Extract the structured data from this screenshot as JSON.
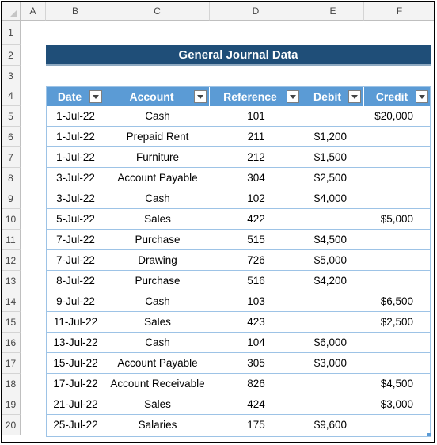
{
  "columns": [
    "A",
    "B",
    "C",
    "D",
    "E",
    "F"
  ],
  "rows": [
    "1",
    "2",
    "3",
    "4",
    "5",
    "6",
    "7",
    "8",
    "9",
    "10",
    "11",
    "12",
    "13",
    "14",
    "15",
    "16",
    "17",
    "18",
    "19",
    "20"
  ],
  "title": "General Journal Data",
  "headers": {
    "date": "Date",
    "account": "Account",
    "reference": "Reference",
    "debit": "Debit",
    "credit": "Credit"
  },
  "entries": [
    {
      "date": "1-Jul-22",
      "account": "Cash",
      "reference": "101",
      "debit": "",
      "credit": "$20,000"
    },
    {
      "date": "1-Jul-22",
      "account": "Prepaid Rent",
      "reference": "211",
      "debit": "$1,200",
      "credit": ""
    },
    {
      "date": "1-Jul-22",
      "account": "Furniture",
      "reference": "212",
      "debit": "$1,500",
      "credit": ""
    },
    {
      "date": "3-Jul-22",
      "account": "Account Payable",
      "reference": "304",
      "debit": "$2,500",
      "credit": ""
    },
    {
      "date": "3-Jul-22",
      "account": "Cash",
      "reference": "102",
      "debit": "$4,000",
      "credit": ""
    },
    {
      "date": "5-Jul-22",
      "account": "Sales",
      "reference": "422",
      "debit": "",
      "credit": "$5,000"
    },
    {
      "date": "7-Jul-22",
      "account": "Purchase",
      "reference": "515",
      "debit": "$4,500",
      "credit": ""
    },
    {
      "date": "7-Jul-22",
      "account": "Drawing",
      "reference": "726",
      "debit": "$5,000",
      "credit": ""
    },
    {
      "date": "8-Jul-22",
      "account": "Purchase",
      "reference": "516",
      "debit": "$4,200",
      "credit": ""
    },
    {
      "date": "9-Jul-22",
      "account": "Cash",
      "reference": "103",
      "debit": "",
      "credit": "$6,500"
    },
    {
      "date": "11-Jul-22",
      "account": "Sales",
      "reference": "423",
      "debit": "",
      "credit": "$2,500"
    },
    {
      "date": "13-Jul-22",
      "account": "Cash",
      "reference": "104",
      "debit": "$6,000",
      "credit": ""
    },
    {
      "date": "15-Jul-22",
      "account": "Account Payable",
      "reference": "305",
      "debit": "$3,000",
      "credit": ""
    },
    {
      "date": "17-Jul-22",
      "account": "Account Receivable",
      "reference": "826",
      "debit": "",
      "credit": "$4,500"
    },
    {
      "date": "21-Jul-22",
      "account": "Sales",
      "reference": "424",
      "debit": "",
      "credit": "$3,000"
    },
    {
      "date": "25-Jul-22",
      "account": "Salaries",
      "reference": "175",
      "debit": "$9,600",
      "credit": ""
    }
  ],
  "colors": {
    "title_bg": "#1f4e78",
    "header_bg": "#5b9bd5",
    "row_border": "#9dc3e6"
  },
  "icons": {
    "filter": "filter-dropdown-icon"
  }
}
